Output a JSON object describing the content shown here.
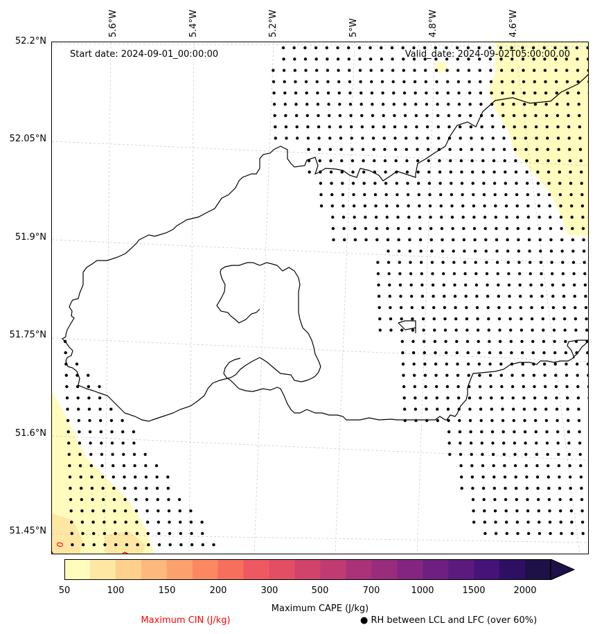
{
  "map": {
    "start_date": "Start date: 2024-09-01_00:00:00",
    "valid_date": "Valid_date: 2024-09-02T05:00:00.00",
    "lon_labels": [
      "5.6°W",
      "5.4°W",
      "5.2°W",
      "5°W",
      "4.8°W",
      "4.6°W"
    ],
    "lat_labels": [
      "52.2°N",
      "52.05°N",
      "51.9°N",
      "51.75°N",
      "51.6°N",
      "51.45°N"
    ],
    "cin_contour_label": "0"
  },
  "colors": {
    "coastline": "#000000",
    "gridline": "#cccccc",
    "dots": "#000000",
    "cin": "#ff0000",
    "cape_levels": [
      "#fffcbd",
      "#fee7a3",
      "#fed08d",
      "#fdb87d",
      "#fca06e",
      "#fb8861",
      "#f66e5c",
      "#ee5961",
      "#e34e65",
      "#d2436c",
      "#c13b73",
      "#ab3278",
      "#982d7c",
      "#842681",
      "#6f1f81",
      "#5c1a7f",
      "#461379",
      "#2e1062",
      "#1d1147"
    ]
  },
  "colorbar": {
    "label": "Maximum CAPE (J/kg)",
    "ticks": [
      "50",
      "100",
      "150",
      "200",
      "300",
      "500",
      "700",
      "1000",
      "1500",
      "2000"
    ],
    "extend": "max"
  },
  "legend": {
    "cin_label": "Maximum CIN (J/kg)",
    "rh_label": "● RH between LCL and LFC (over 60%)"
  }
}
